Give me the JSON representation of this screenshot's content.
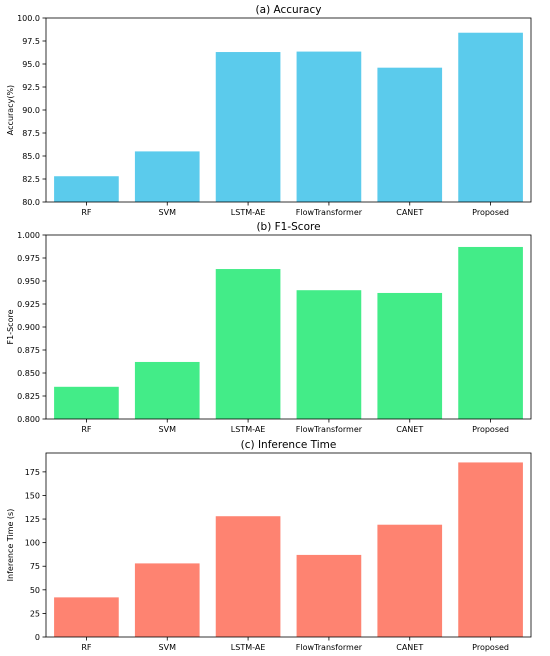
{
  "chart_data": [
    {
      "type": "bar",
      "title": "(a) Accuracy",
      "xlabel": "",
      "ylabel": "Accuracy(%)",
      "categories": [
        "RF",
        "SVM",
        "LSTM-AE",
        "FlowTransformer",
        "CANET",
        "Proposed"
      ],
      "values": [
        82.8,
        85.5,
        96.3,
        96.35,
        94.6,
        98.4
      ],
      "ylim": [
        80.0,
        100.0
      ],
      "yticks": [
        "80.0",
        "82.5",
        "85.0",
        "87.5",
        "90.0",
        "92.5",
        "95.0",
        "97.5",
        "100.0"
      ],
      "color": "#5bcbec",
      "grid": false
    },
    {
      "type": "bar",
      "title": "(b) F1-Score",
      "xlabel": "",
      "ylabel": "F1-Score",
      "categories": [
        "RF",
        "SVM",
        "LSTM-AE",
        "FlowTransformer",
        "CANET",
        "Proposed"
      ],
      "values": [
        0.835,
        0.862,
        0.963,
        0.94,
        0.937,
        0.987
      ],
      "ylim": [
        0.8,
        1.0
      ],
      "yticks": [
        "0.800",
        "0.825",
        "0.850",
        "0.875",
        "0.900",
        "0.925",
        "0.950",
        "0.975",
        "1.000"
      ],
      "color": "#43ec88",
      "grid": false
    },
    {
      "type": "bar",
      "title": "(c) Inference Time",
      "xlabel": "",
      "ylabel": "Inference Time (s)",
      "categories": [
        "RF",
        "SVM",
        "LSTM-AE",
        "FlowTransformer",
        "CANET",
        "Proposed"
      ],
      "values": [
        42,
        78,
        128,
        87,
        119,
        185
      ],
      "ylim": [
        0,
        195
      ],
      "yticks": [
        "0",
        "25",
        "50",
        "75",
        "100",
        "125",
        "150",
        "175"
      ],
      "color": "#fe8371",
      "grid": false
    }
  ]
}
